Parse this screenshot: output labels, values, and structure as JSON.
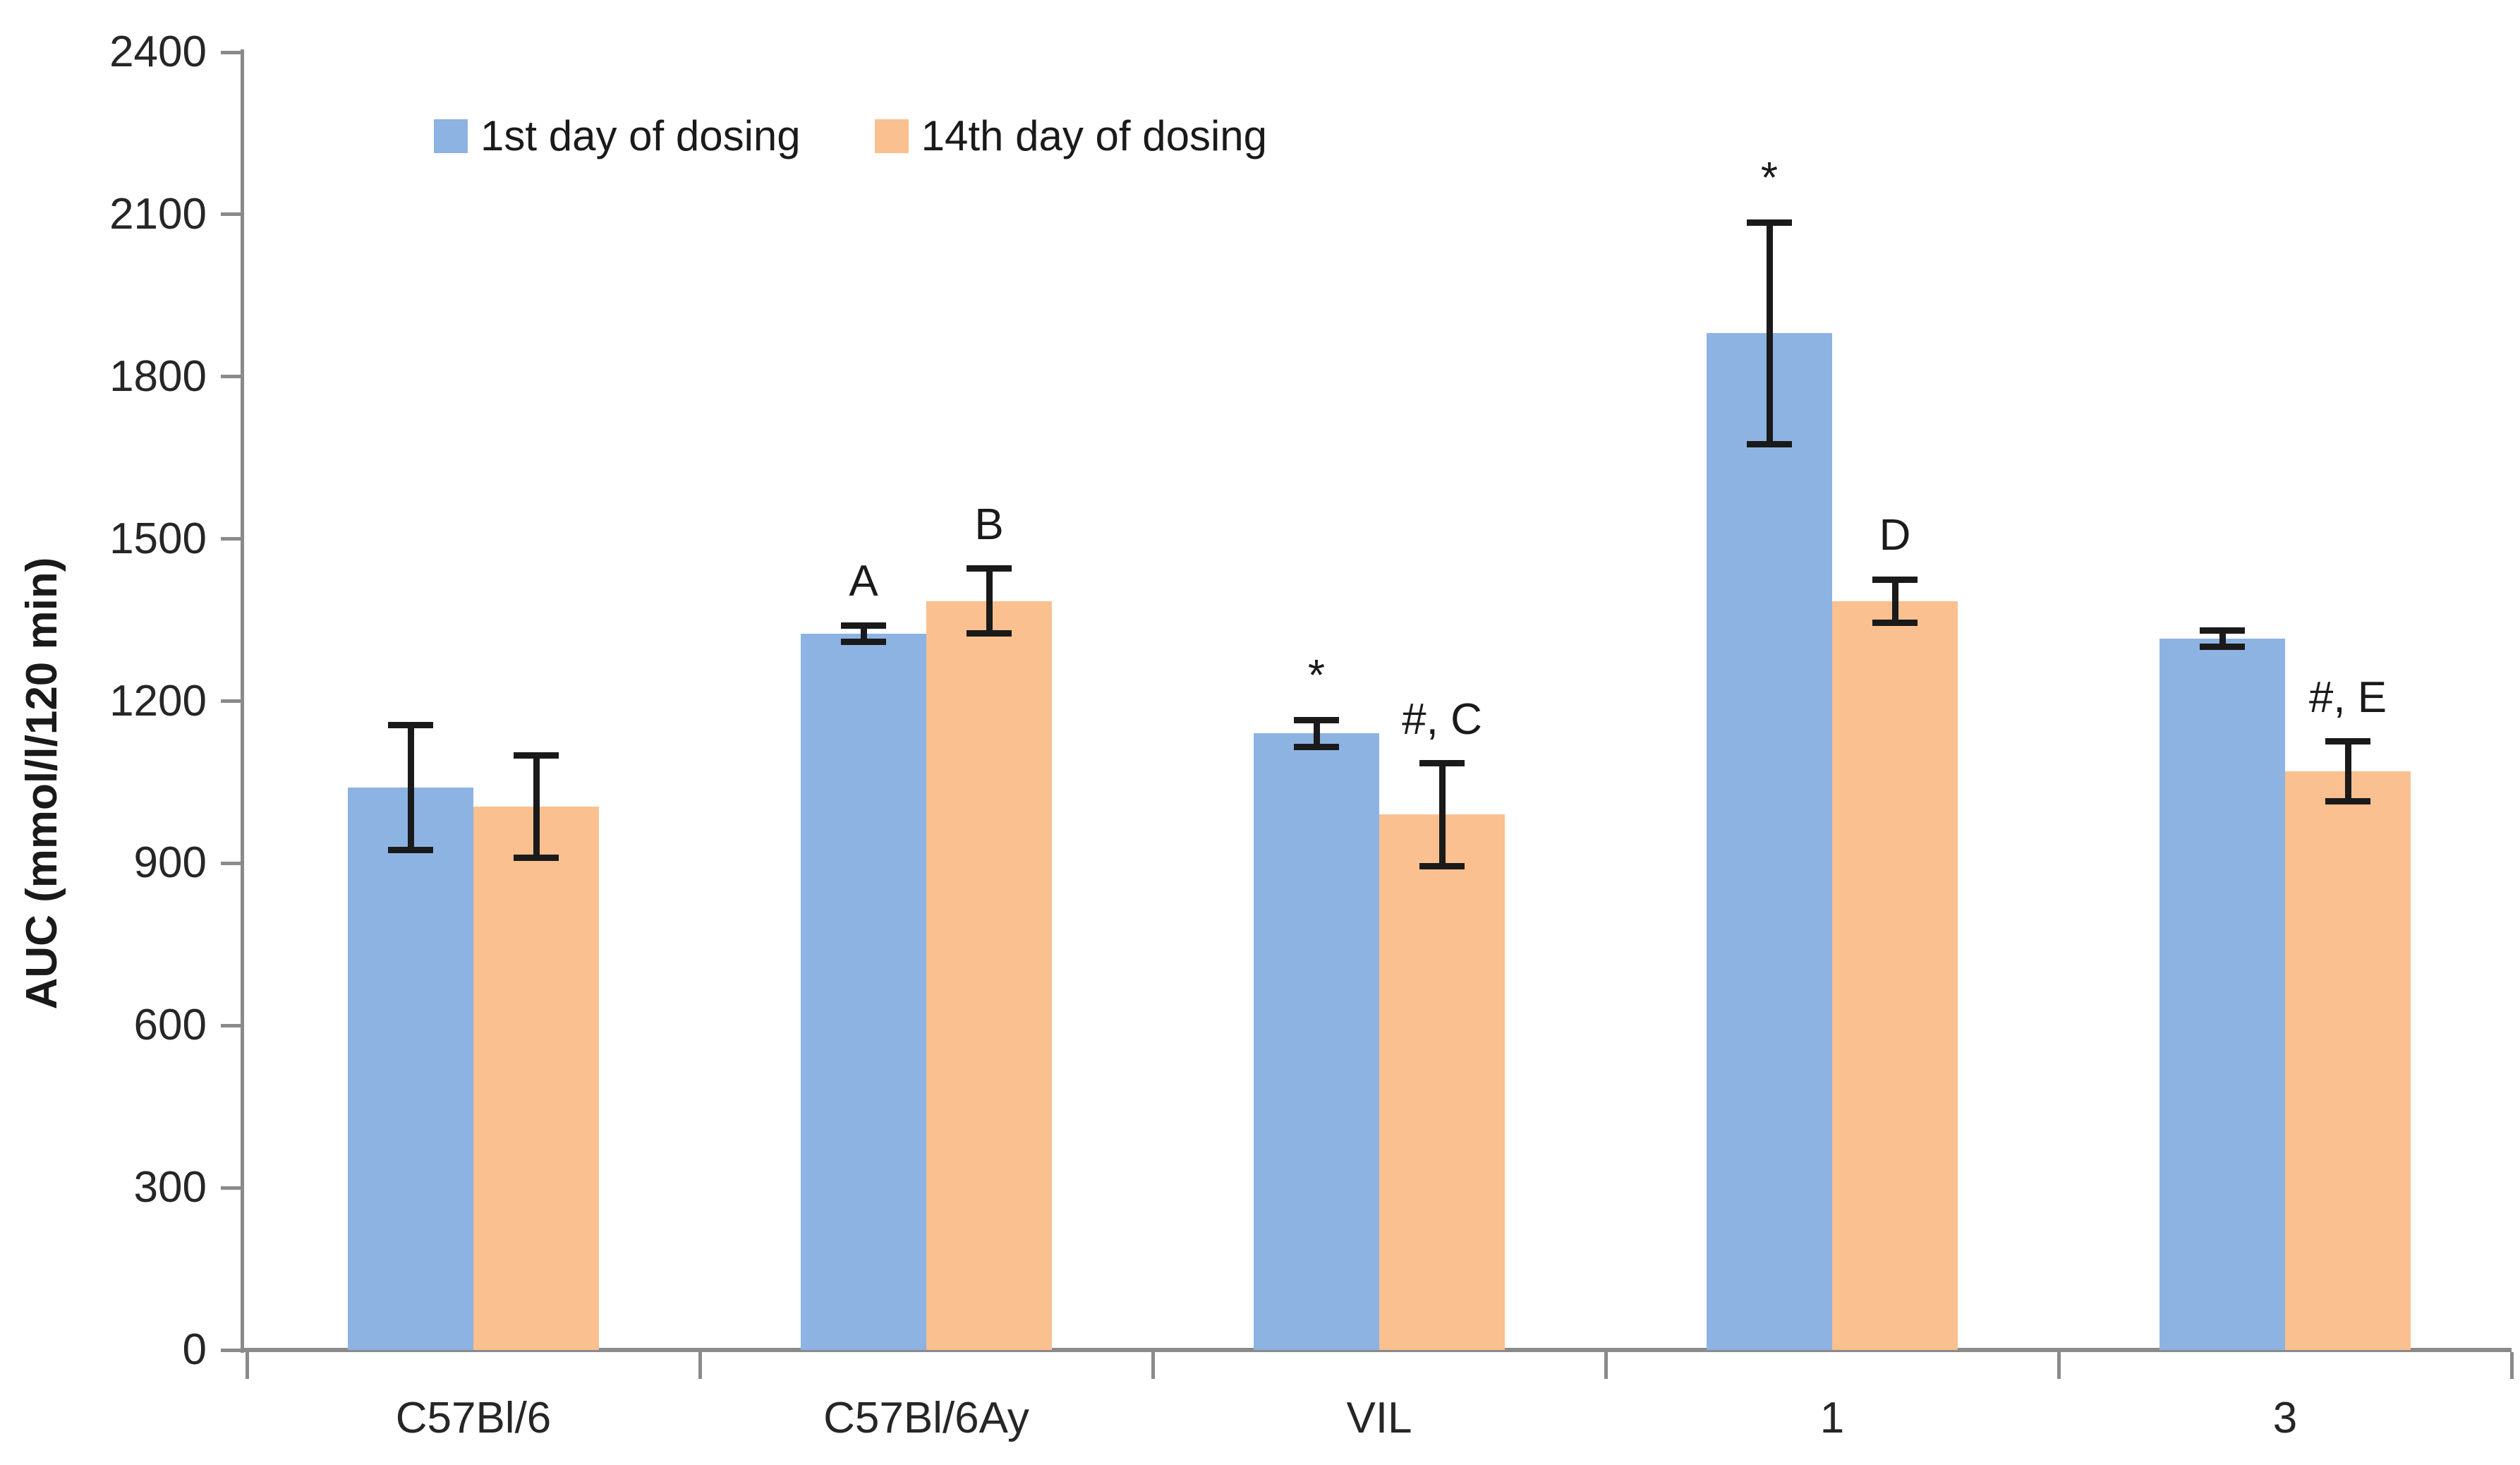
{
  "chart_data": {
    "type": "bar",
    "title": "",
    "xlabel": "",
    "ylabel": "AUC (mmol/l/120 min)",
    "ylim": [
      0,
      2400
    ],
    "ytick_step": 300,
    "grid": false,
    "legend_position": "top-left-inside",
    "categories": [
      "C57Bl/6",
      "C57Bl/6Ay",
      "VIL",
      "1",
      "3"
    ],
    "series": [
      {
        "name": "1st day of dosing",
        "color": "#8db3e2",
        "values": [
          1040,
          1325,
          1140,
          1880,
          1315
        ],
        "errors": [
          115,
          15,
          25,
          205,
          15
        ],
        "annotations": [
          "",
          "A",
          "*",
          "*",
          ""
        ]
      },
      {
        "name": "14th day of dosing",
        "color": "#fac090",
        "values": [
          1005,
          1385,
          990,
          1385,
          1070
        ],
        "errors": [
          95,
          60,
          95,
          40,
          55
        ],
        "annotations": [
          "",
          "B",
          "#, C",
          "D",
          "#, E"
        ]
      }
    ],
    "error_bar_color": "#1a1a1a",
    "axis_color": "#8a8a8a",
    "text_color": "#262626"
  }
}
